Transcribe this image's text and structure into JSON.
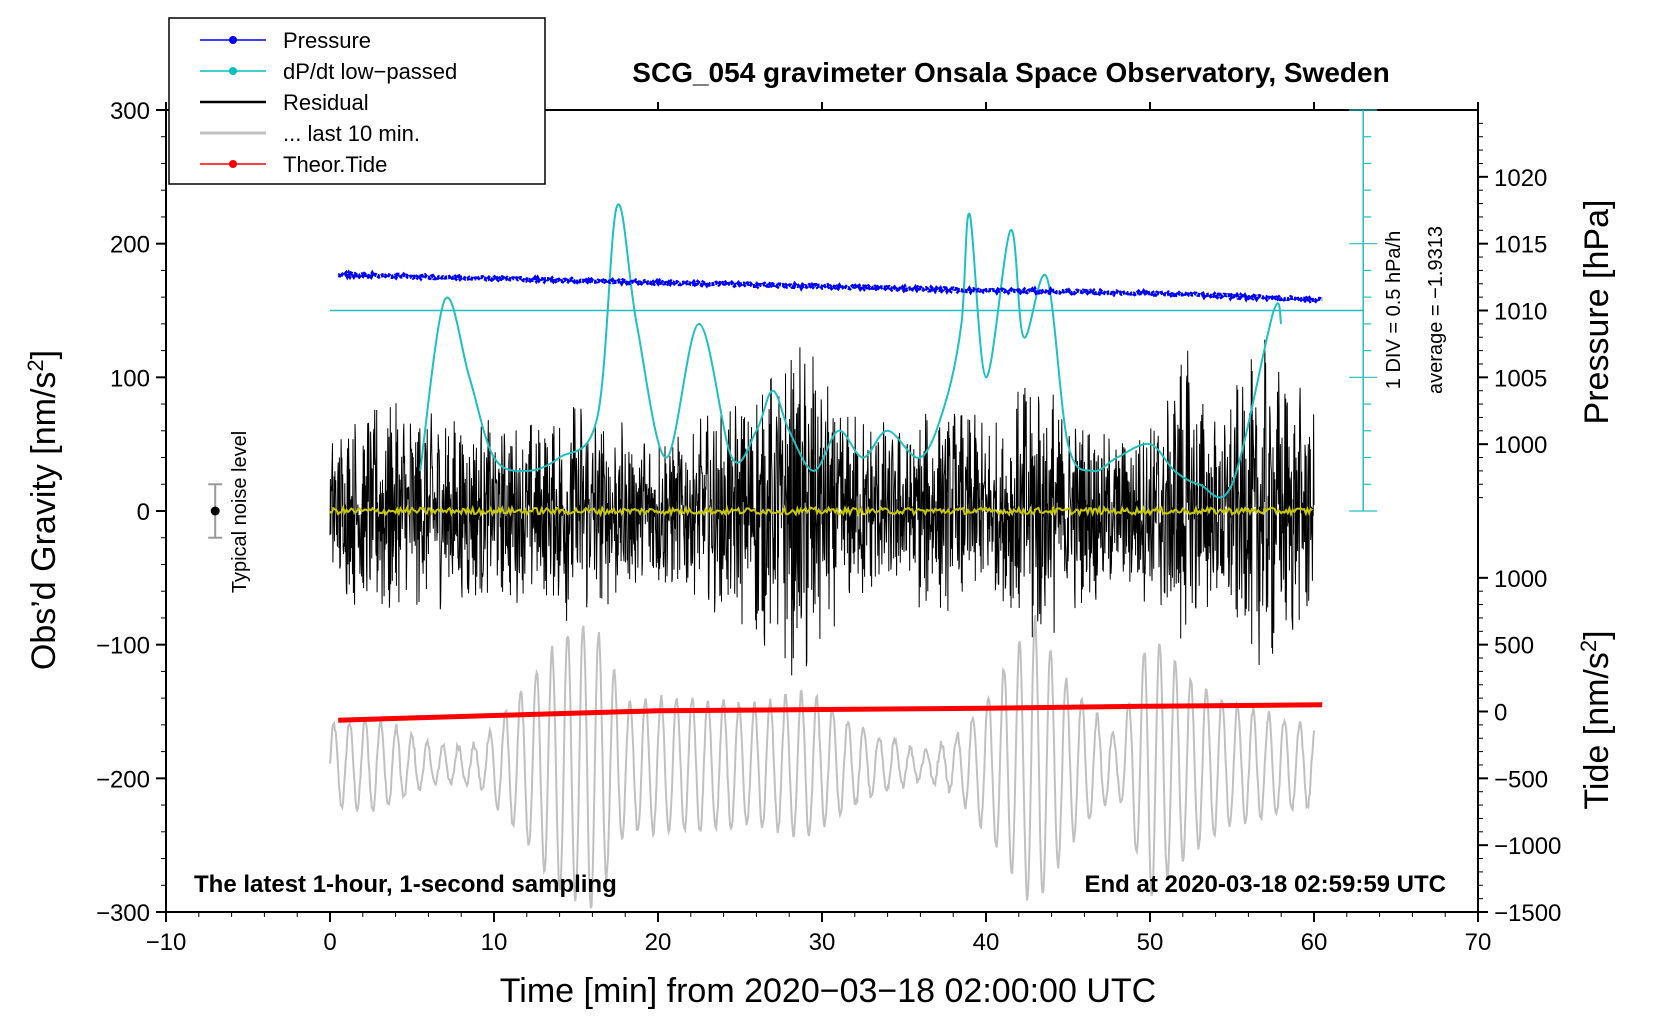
{
  "chart_data": {
    "type": "line",
    "title": "SCG_054 gravimeter Onsala Space Observatory, Sweden",
    "xlabel": "Time [min] from 2020−03−18 02:00:00 UTC",
    "ylabel_left": "Obs’d Gravity [nm/s",
    "ylabel_left_sup": "2",
    "ylabel_left_close": "]",
    "ylabel_right_pressure": "Pressure [hPa]",
    "ylabel_right_tide": "Tide [nm/s",
    "ylabel_right_tide_sup": "2",
    "ylabel_right_tide_close": "]",
    "xlim": [
      -10,
      70
    ],
    "ylim": [
      -300,
      300
    ],
    "x_ticks": [
      -10,
      0,
      10,
      20,
      30,
      40,
      50,
      60,
      70
    ],
    "x_tick_labels": [
      "−10",
      "0",
      "10",
      "20",
      "30",
      "40",
      "50",
      "60",
      "70"
    ],
    "y_ticks": [
      300,
      200,
      100,
      0,
      -100,
      -200,
      -300
    ],
    "y_tick_labels": [
      "300",
      "200",
      "100",
      "0",
      "−100",
      "−200",
      "−300"
    ],
    "pressure_ticks": [
      1020,
      1015,
      1010,
      1005,
      1000
    ],
    "pressure_tick_labels": [
      "1020",
      "1015",
      "1010",
      "1005",
      "1000"
    ],
    "pressure_axis_span_gravity": [
      100,
      250
    ],
    "pressure_axis_range_hpa": [
      994,
      1024
    ],
    "tide_ticks": [
      1000,
      500,
      0,
      -500,
      -1000,
      -1500
    ],
    "tide_tick_labels": [
      "1000",
      "500",
      "0",
      "−500",
      "−1000",
      "−1500"
    ],
    "tide_axis_span_gravity": [
      -300,
      50
    ],
    "tide_axis_range": [
      -1500,
      1300
    ],
    "corner_left": "The latest 1-hour, 1-second sampling",
    "corner_right": "End at 2020-03-18 02:59:59 UTC",
    "noise_label": "Typical noise level",
    "noise_level": {
      "x": -7,
      "center": 0,
      "half_range": 20
    },
    "dpdt_scale_text": "1 DIV = 0.5 hPa/h",
    "dpdt_average_text": "average = −1.9313",
    "dpdt_axis": {
      "x": 63,
      "from_gravity": 0,
      "to_gravity": 300,
      "divisions": 15,
      "average_gravity": 150
    },
    "legend": [
      {
        "name": "Pressure",
        "color": "#0000ff",
        "marker": true
      },
      {
        "name": "dP/dt low−passed",
        "color": "#00c0c0",
        "marker": true
      },
      {
        "name": "Residual",
        "color": "#000000",
        "marker": false
      },
      {
        "name": "... last 10 min.",
        "color": "#c0c0c0",
        "marker": false
      },
      {
        "name": "Theor.Tide",
        "color": "#ff0000",
        "marker": true
      }
    ],
    "colors": {
      "pressure": "#0000ff",
      "dpdt": "#20c0c0",
      "residual": "#000000",
      "last10": "#c0c0c0",
      "tide": "#ff0000",
      "yellow": "#c8c800"
    },
    "series": [
      {
        "name": "Pressure",
        "units": "gravity-axis",
        "x": [
          0.5,
          10,
          20,
          30,
          40,
          50,
          60.5
        ],
        "y": [
          177,
          174,
          171,
          168,
          165,
          163,
          158
        ]
      },
      {
        "name": "dP/dt low-passed",
        "units": "gravity-axis",
        "x": [
          5.5,
          7,
          8.5,
          10,
          12,
          14,
          16.3,
          17.5,
          18.7,
          20.5,
          22.5,
          24.5,
          26,
          27,
          28,
          29.5,
          31,
          32.5,
          34,
          36,
          37.5,
          38.5,
          39,
          40,
          41.5,
          42.3,
          43.7,
          45,
          46.5,
          48,
          50,
          51.5,
          53,
          55,
          57.5,
          58
        ],
        "y": [
          30,
          158,
          100,
          40,
          30,
          40,
          70,
          228,
          140,
          40,
          140,
          40,
          60,
          90,
          60,
          30,
          60,
          40,
          60,
          40,
          80,
          140,
          222,
          100,
          210,
          130,
          175,
          50,
          30,
          40,
          50,
          30,
          20,
          20,
          148,
          140
        ]
      },
      {
        "name": "Residual",
        "units": "gravity-axis",
        "x_range": [
          0,
          60
        ],
        "amplitude_envelope": [
          [
            0,
            60
          ],
          [
            3,
            90
          ],
          [
            6,
            80
          ],
          [
            10,
            70
          ],
          [
            13,
            70
          ],
          [
            15,
            90
          ],
          [
            17,
            75
          ],
          [
            19,
            65
          ],
          [
            22,
            65
          ],
          [
            25,
            90
          ],
          [
            27,
            110
          ],
          [
            29,
            140
          ],
          [
            31,
            80
          ],
          [
            34,
            70
          ],
          [
            38,
            80
          ],
          [
            41,
            70
          ],
          [
            43,
            120
          ],
          [
            45,
            80
          ],
          [
            48,
            60
          ],
          [
            50,
            75
          ],
          [
            52,
            130
          ],
          [
            54,
            75
          ],
          [
            57,
            130
          ],
          [
            60,
            80
          ]
        ]
      },
      {
        "name": "... last 10 min.",
        "units": "gravity-axis",
        "x_range": [
          0,
          60
        ],
        "center": -190,
        "amplitude_envelope": [
          [
            0,
            30
          ],
          [
            3,
            35
          ],
          [
            6,
            15
          ],
          [
            9,
            15
          ],
          [
            12,
            60
          ],
          [
            14,
            95
          ],
          [
            16,
            110
          ],
          [
            18,
            50
          ],
          [
            22,
            50
          ],
          [
            26,
            45
          ],
          [
            29,
            55
          ],
          [
            32,
            30
          ],
          [
            36,
            10
          ],
          [
            38,
            20
          ],
          [
            40,
            50
          ],
          [
            43,
            110
          ],
          [
            45,
            60
          ],
          [
            48,
            20
          ],
          [
            50,
            100
          ],
          [
            52,
            70
          ],
          [
            55,
            45
          ],
          [
            58,
            35
          ],
          [
            60,
            30
          ]
        ]
      },
      {
        "name": "Theor.Tide",
        "units": "tide",
        "x": [
          0.5,
          10,
          20,
          30,
          40,
          50,
          60.5
        ],
        "y": [
          -65,
          -30,
          5,
          15,
          25,
          40,
          50
        ]
      },
      {
        "name": "Yellow trace",
        "units": "gravity-axis",
        "x_range": [
          0,
          60
        ],
        "y": 0
      }
    ]
  }
}
